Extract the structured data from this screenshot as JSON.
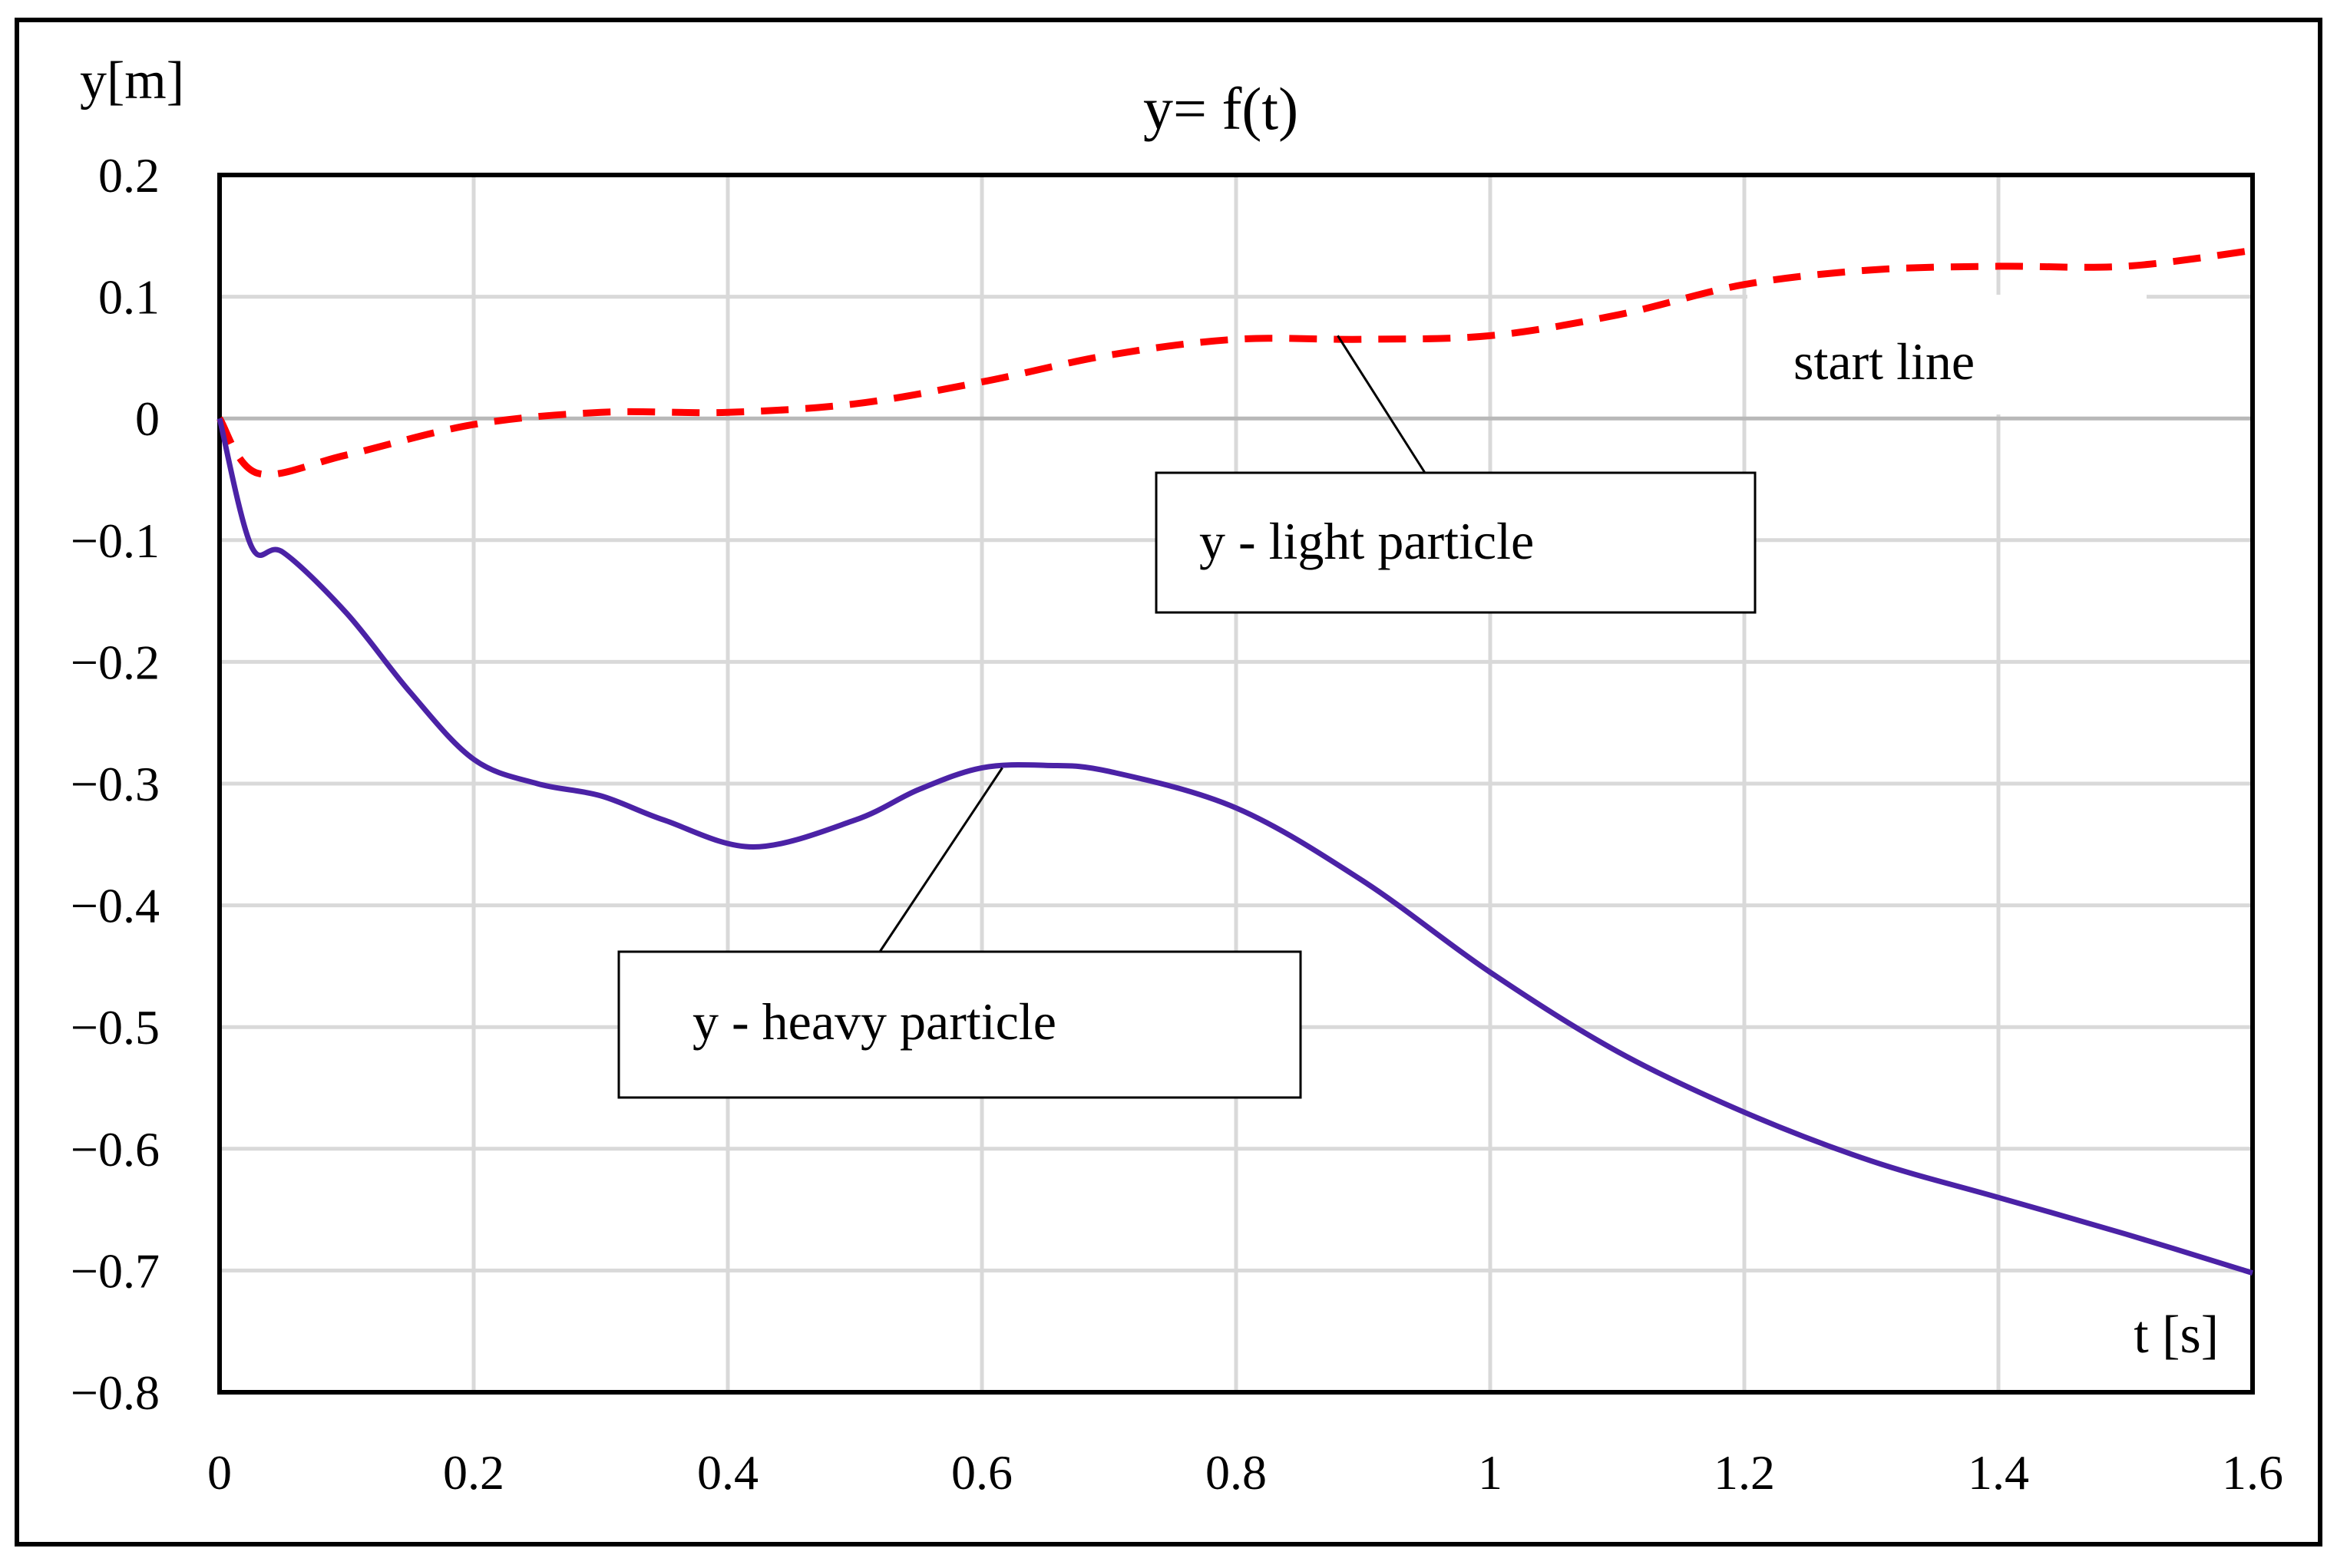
{
  "chart_data": {
    "type": "line",
    "title": "y= f(t)",
    "xlabel": "t [s]",
    "ylabel": "y[m]",
    "xlim": [
      0,
      1.6
    ],
    "ylim": [
      -0.8,
      0.2
    ],
    "xticks": [
      0,
      0.2,
      0.4,
      0.6,
      0.8,
      1,
      1.2,
      1.4,
      1.6
    ],
    "xtick_labels": [
      "0",
      "0.2",
      "0.4",
      "0.6",
      "0.8",
      "1",
      "1.2",
      "1.4",
      "1.6"
    ],
    "yticks": [
      0.2,
      0.1,
      0,
      -0.1,
      -0.2,
      -0.3,
      -0.4,
      -0.5,
      -0.6,
      -0.7,
      -0.8
    ],
    "ytick_labels": [
      "0.2",
      "0.1",
      "0",
      "−0.1",
      "−0.2",
      "−0.3",
      "−0.4",
      "−0.5",
      "−0.6",
      "−0.7",
      "−0.8"
    ],
    "grid": true,
    "series": [
      {
        "name": "y - light particle",
        "color": "#ff0000",
        "style": "dashed",
        "x": [
          0,
          0.03,
          0.1,
          0.2,
          0.3,
          0.4,
          0.5,
          0.6,
          0.7,
          0.8,
          0.9,
          1.0,
          1.1,
          1.2,
          1.3,
          1.4,
          1.5,
          1.6
        ],
        "y": [
          0,
          -0.045,
          -0.03,
          -0.005,
          0.005,
          0.005,
          0.012,
          0.03,
          0.052,
          0.065,
          0.065,
          0.068,
          0.085,
          0.11,
          0.122,
          0.125,
          0.125,
          0.138
        ]
      },
      {
        "name": "y - heavy particle",
        "color": "#4b22a6",
        "style": "solid",
        "x": [
          0,
          0.025,
          0.05,
          0.1,
          0.15,
          0.2,
          0.25,
          0.3,
          0.35,
          0.42,
          0.5,
          0.55,
          0.6,
          0.65,
          0.7,
          0.8,
          0.9,
          1.0,
          1.1,
          1.2,
          1.3,
          1.4,
          1.5,
          1.6
        ],
        "y": [
          0,
          -0.105,
          -0.11,
          -0.16,
          -0.225,
          -0.28,
          -0.3,
          -0.31,
          -0.33,
          -0.352,
          -0.33,
          -0.305,
          -0.287,
          -0.285,
          -0.29,
          -0.32,
          -0.38,
          -0.455,
          -0.52,
          -0.57,
          -0.61,
          -0.64,
          -0.67,
          -0.702
        ]
      }
    ],
    "annotations": [
      {
        "text": "y - light particle",
        "target_series": 0,
        "target": [
          0.88,
          0.068
        ]
      },
      {
        "text": "y  - heavy particle",
        "target_series": 1,
        "target": [
          0.61,
          -0.287
        ]
      },
      {
        "text": "start line",
        "target": [
          1.2,
          0
        ]
      }
    ]
  }
}
